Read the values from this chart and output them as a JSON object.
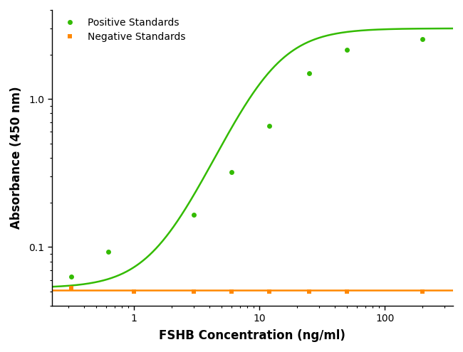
{
  "title": "",
  "xlabel": "FSHB Concentration (ng/ml)",
  "ylabel": "Absorbance (450 nm)",
  "positive_x": [
    0.313,
    0.625,
    3.0,
    6.0,
    12.0,
    25.0,
    50.0,
    200.0
  ],
  "positive_y": [
    0.063,
    0.093,
    0.165,
    0.32,
    0.66,
    1.5,
    2.15,
    2.55
  ],
  "negative_x": [
    0.313,
    1.0,
    3.0,
    6.0,
    12.0,
    25.0,
    50.0,
    200.0
  ],
  "negative_y": [
    0.053,
    0.05,
    0.05,
    0.05,
    0.05,
    0.05,
    0.05,
    0.05
  ],
  "positive_color": "#33bb00",
  "negative_color": "#ff8800",
  "positive_marker": "o",
  "negative_marker": "s",
  "marker_size": 5,
  "line_width": 1.8,
  "xlim": [
    0.22,
    350
  ],
  "ylim": [
    0.04,
    4.0
  ],
  "xticks": [
    1,
    10,
    100
  ],
  "yticks": [
    0.1,
    1
  ],
  "background_color": "#ffffff",
  "legend_positive": "Positive Standards",
  "legend_negative": "Negative Standards"
}
